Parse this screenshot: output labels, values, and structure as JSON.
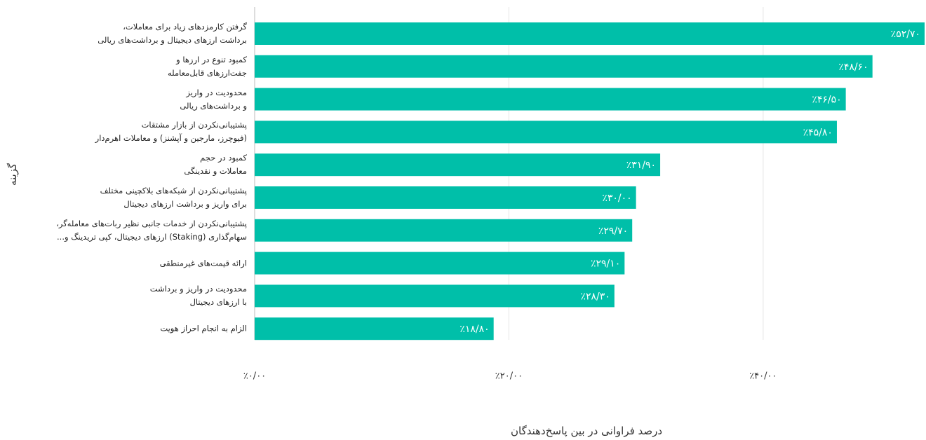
{
  "chart_data": {
    "type": "bar",
    "orientation": "horizontal",
    "xlabel": "درصد فراوانی در بین پاسخ‌دهندگان",
    "ylabel": "گزینه",
    "categories": [
      "گرفتن کارمزدهای زیاد برای معاملات،\nبرداشت ارزهای دیجیتال و برداشت‌های ریالی",
      "کمبود تنوع در ارزها و\nجفت‌ارزهای قابل‌معامله",
      "محدودیت در واریز\nو برداشت‌های ریالی",
      "پشتیبانی‌نکردن از بازار مشتقات\n(فیوچرز، مارجین و آپشنز) و معاملات اهرم‌دار",
      "کمبود در حجم\nمعاملات و نقدینگی",
      "پشتیبانی‌نکردن از شبکه‌های بلاکچینی مختلف\nبرای واریز و برداشت ارزهای دیجیتال",
      "پشتیبانی‌نکردن از خدمات جانبی نظیر ربات‌های معامله‌گر،\nسهام‌گذاری (Staking) ارزهای دیجیتال، کپی تریدینگ و...",
      "ارائه قیمت‌های غیرمنطقی",
      "محدودیت در واریز و برداشت\nبا ارزهای دیجیتال",
      "الزام به انجام احراز هویت"
    ],
    "values": [
      52.7,
      48.6,
      46.5,
      45.8,
      31.9,
      30.0,
      29.7,
      29.1,
      28.3,
      18.8
    ],
    "value_labels": [
      "٪۵۲/۷۰",
      "٪۴۸/۶۰",
      "٪۴۶/۵۰",
      "٪۴۵/۸۰",
      "٪۳۱/۹۰",
      "٪۳۰/۰۰",
      "٪۲۹/۷۰",
      "٪۲۹/۱۰",
      "٪۲۸/۳۰",
      "٪۱۸/۸۰"
    ],
    "color": "#00bfa9",
    "xlim": [
      0,
      52.7
    ],
    "xticks": [
      {
        "value": 0,
        "label": "٪۰/۰۰"
      },
      {
        "value": 20,
        "label": "٪۲۰/۰۰"
      },
      {
        "value": 40,
        "label": "٪۴۰/۰۰"
      }
    ],
    "grid": true
  }
}
